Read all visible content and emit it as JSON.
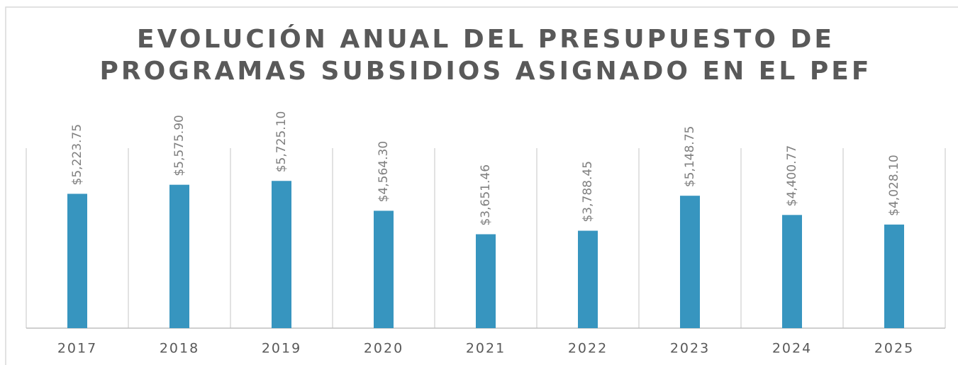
{
  "chart_data": {
    "type": "bar",
    "title": [
      "EVOLUCIÓN ANUAL DEL PRESUPUESTO DE",
      "PROGRAMAS SUBSIDIOS ASIGNADO EN EL PEF"
    ],
    "categories": [
      "2017",
      "2018",
      "2019",
      "2020",
      "2021",
      "2022",
      "2023",
      "2024",
      "2025"
    ],
    "values": [
      5223.75,
      5575.9,
      5725.1,
      4564.3,
      3651.46,
      3788.45,
      5148.75,
      4400.77,
      4028.1
    ],
    "value_labels": [
      "$5,223.75",
      "$5,575.90",
      "$5,725.10",
      "$4,564.30",
      "$3,651.46",
      "$3,788.45",
      "$5,148.75",
      "$4,400.77",
      "$4,028.10"
    ],
    "color": "#3795bf",
    "ylim": [
      0,
      7000
    ]
  }
}
